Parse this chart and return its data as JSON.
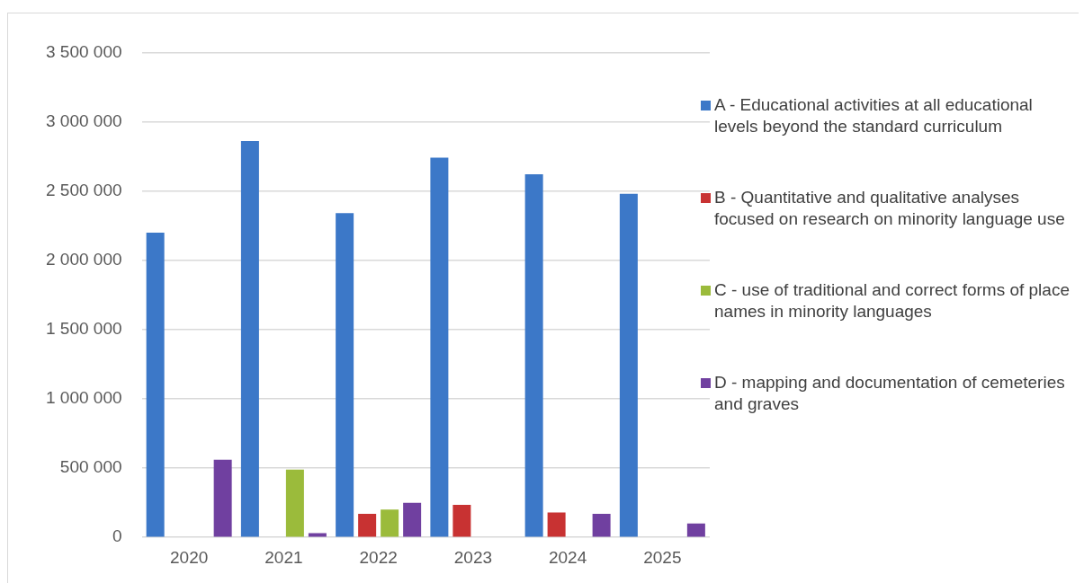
{
  "chart_data": {
    "type": "bar",
    "categories": [
      "2020",
      "2021",
      "2022",
      "2023",
      "2024",
      "2025"
    ],
    "series": [
      {
        "name": "A - Educational activities at all educational levels beyond the standard curriculum",
        "color": "#3c78c8",
        "values": [
          2200000,
          2860000,
          2340000,
          2740000,
          2620000,
          2480000
        ]
      },
      {
        "name": "B - Quantitative and qualitative analyses focused on research on minority language use",
        "color": "#c83232",
        "values": [
          null,
          null,
          170000,
          235000,
          180000,
          null
        ]
      },
      {
        "name": "C - use of traditional and correct forms of place names in minority languages",
        "color": "#9bbb3b",
        "values": [
          null,
          490000,
          200000,
          null,
          null,
          null
        ]
      },
      {
        "name": "D - mapping and documentation of cemeteries and graves",
        "color": "#7040a0",
        "values": [
          560000,
          30000,
          250000,
          null,
          170000,
          100000
        ]
      }
    ],
    "ylim": [
      0,
      3500000
    ],
    "yticks": [
      {
        "value": 0,
        "label": "0"
      },
      {
        "value": 500000,
        "label": "500 000"
      },
      {
        "value": 1000000,
        "label": "1 000 000"
      },
      {
        "value": 1500000,
        "label": "1 500 000"
      },
      {
        "value": 2000000,
        "label": "2 000 000"
      },
      {
        "value": 2500000,
        "label": "2 500 000"
      },
      {
        "value": 3000000,
        "label": "3 000 000"
      },
      {
        "value": 3500000,
        "label": "3 500 000"
      }
    ],
    "grid": "y",
    "legend": "right"
  }
}
